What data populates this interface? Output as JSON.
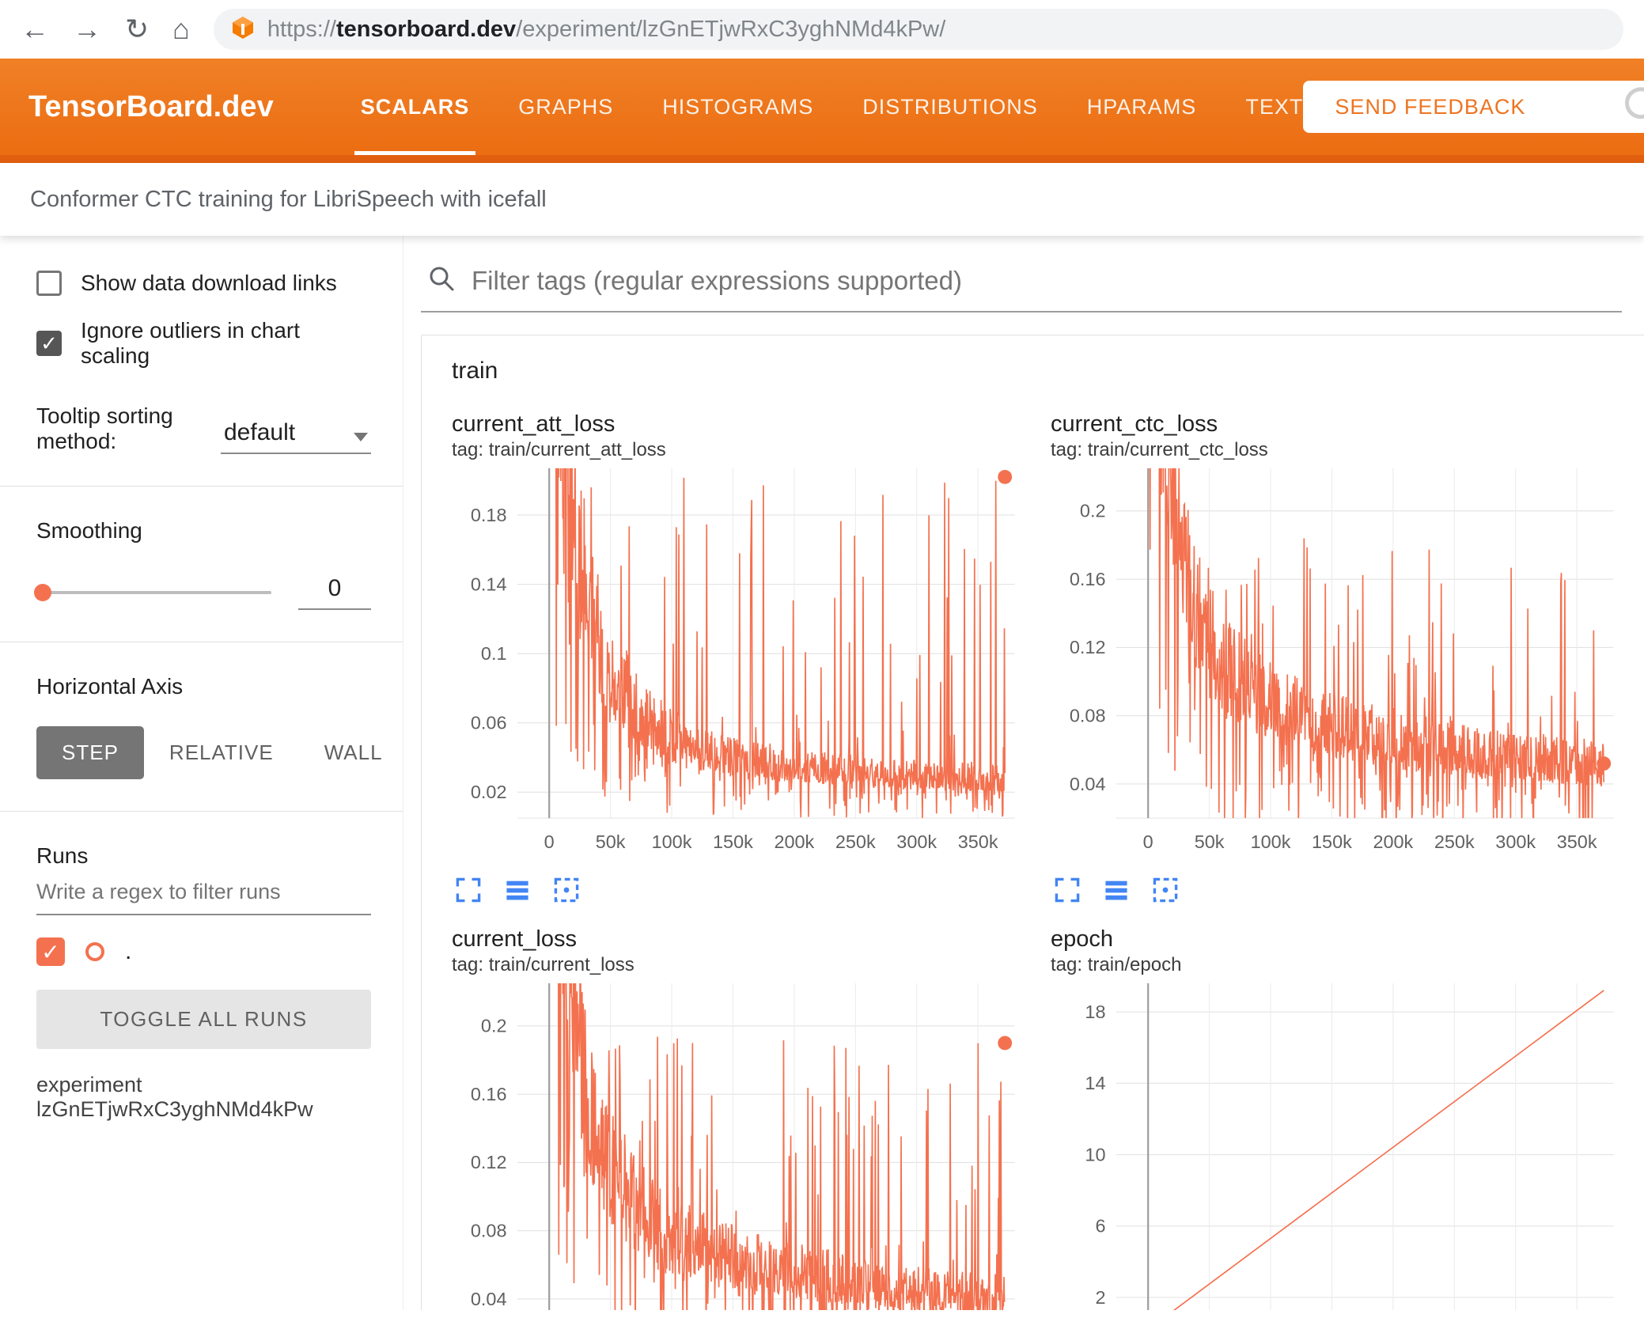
{
  "browser": {
    "url_scheme": "https://",
    "url_host": "tensorboard.dev",
    "url_path": "/experiment/lzGnETjwRxC3yghNMd4kPw/"
  },
  "header": {
    "title": "TensorBoard.dev",
    "tabs": [
      {
        "label": "SCALARS"
      },
      {
        "label": "GRAPHS"
      },
      {
        "label": "HISTOGRAMS"
      },
      {
        "label": "DISTRIBUTIONS"
      },
      {
        "label": "HPARAMS"
      },
      {
        "label": "TEXT"
      }
    ],
    "active_tab": "SCALARS",
    "feedback_button": "SEND FEEDBACK"
  },
  "experiment": {
    "subtitle": "Conformer CTC training for LibriSpeech with icefall",
    "caption": "experiment lzGnETjwRxC3yghNMd4kPw"
  },
  "sidebar": {
    "show_download_label": "Show data download links",
    "show_download_checked": false,
    "ignore_outliers_label": "Ignore outliers in chart scaling",
    "ignore_outliers_checked": true,
    "check_glyph": "✓",
    "tooltip_label": "Tooltip sorting method:",
    "tooltip_value": "default",
    "smoothing_label": "Smoothing",
    "smoothing_value": "0",
    "axis_label": "Horizontal Axis",
    "axis_options": [
      {
        "label": "STEP"
      },
      {
        "label": "RELATIVE"
      },
      {
        "label": "WALL"
      }
    ],
    "axis_selected": "STEP",
    "runs_label": "Runs",
    "runs_filter_placeholder": "Write a regex to filter runs",
    "run_name": ".",
    "toggle_all_label": "TOGGLE ALL RUNS"
  },
  "main": {
    "filter_placeholder": "Filter tags (regular expressions supported)",
    "group_title": "train"
  },
  "colors": {
    "header_orange": "#ee7420",
    "header_orange_dark": "#e25f10",
    "run_color": "#f4714f",
    "icon_blue": "#4285f4"
  },
  "chart_data": [
    {
      "type": "line",
      "title": "current_att_loss",
      "tag": "tag: train/current_att_loss",
      "legend": "none",
      "grid": true,
      "xlim": [
        -26000,
        380000
      ],
      "ylim": [
        0.005,
        0.207
      ],
      "x_start": 0,
      "x_end": 372000,
      "xticks": [
        {
          "v": 0,
          "label": "0"
        },
        {
          "v": 50000,
          "label": "50k"
        },
        {
          "v": 100000,
          "label": "100k"
        },
        {
          "v": 150000,
          "label": "150k"
        },
        {
          "v": 200000,
          "label": "200k"
        },
        {
          "v": 250000,
          "label": "250k"
        },
        {
          "v": 300000,
          "label": "300k"
        },
        {
          "v": 350000,
          "label": "350k"
        }
      ],
      "yticks": [
        {
          "v": 0.02,
          "label": "0.02"
        },
        {
          "v": 0.06,
          "label": "0.06"
        },
        {
          "v": 0.1,
          "label": "0.1"
        },
        {
          "v": 0.14,
          "label": "0.14"
        },
        {
          "v": 0.18,
          "label": "0.18"
        }
      ],
      "baseline": [
        [
          0,
          0.3
        ],
        [
          8000,
          0.26
        ],
        [
          20000,
          0.18
        ],
        [
          40000,
          0.1
        ],
        [
          60000,
          0.075
        ],
        [
          80000,
          0.06
        ],
        [
          100000,
          0.05
        ],
        [
          140000,
          0.04
        ],
        [
          200000,
          0.034
        ],
        [
          260000,
          0.03
        ],
        [
          320000,
          0.028
        ],
        [
          372000,
          0.027
        ]
      ],
      "noise": {
        "seed": 11,
        "jitter": 0.3,
        "spike_prob": 0.12,
        "spike_max": 0.205,
        "dip_prob": 0.18,
        "n": 900
      },
      "end_dot": 0.202
    },
    {
      "type": "line",
      "title": "current_ctc_loss",
      "tag": "tag: train/current_ctc_loss",
      "legend": "none",
      "grid": true,
      "xlim": [
        -26000,
        380000
      ],
      "ylim": [
        0.02,
        0.225
      ],
      "x_start": 0,
      "x_end": 372000,
      "xticks": [
        {
          "v": 0,
          "label": "0"
        },
        {
          "v": 50000,
          "label": "50k"
        },
        {
          "v": 100000,
          "label": "100k"
        },
        {
          "v": 150000,
          "label": "150k"
        },
        {
          "v": 200000,
          "label": "200k"
        },
        {
          "v": 250000,
          "label": "250k"
        },
        {
          "v": 300000,
          "label": "300k"
        },
        {
          "v": 350000,
          "label": "350k"
        }
      ],
      "yticks": [
        {
          "v": 0.04,
          "label": "0.04"
        },
        {
          "v": 0.08,
          "label": "0.08"
        },
        {
          "v": 0.12,
          "label": "0.12"
        },
        {
          "v": 0.16,
          "label": "0.16"
        },
        {
          "v": 0.2,
          "label": "0.2"
        }
      ],
      "baseline": [
        [
          0,
          0.34
        ],
        [
          8000,
          0.3
        ],
        [
          20000,
          0.21
        ],
        [
          40000,
          0.135
        ],
        [
          60000,
          0.11
        ],
        [
          80000,
          0.095
        ],
        [
          100000,
          0.085
        ],
        [
          140000,
          0.074
        ],
        [
          200000,
          0.064
        ],
        [
          260000,
          0.057
        ],
        [
          320000,
          0.053
        ],
        [
          372000,
          0.05
        ]
      ],
      "noise": {
        "seed": 23,
        "jitter": 0.27,
        "spike_prob": 0.1,
        "spike_max": 0.185,
        "dip_prob": 0.16,
        "n": 900
      },
      "end_dot": 0.052
    },
    {
      "type": "line",
      "title": "current_loss",
      "tag": "tag: train/current_loss",
      "legend": "none",
      "grid": true,
      "xlim": [
        -26000,
        380000
      ],
      "ylim": [
        0.02,
        0.225
      ],
      "x_start": 0,
      "x_end": 372000,
      "xticks": [
        {
          "v": 0,
          "label": "0"
        },
        {
          "v": 50000,
          "label": "50k"
        },
        {
          "v": 100000,
          "label": "100k"
        },
        {
          "v": 150000,
          "label": "150k"
        },
        {
          "v": 200000,
          "label": "200k"
        },
        {
          "v": 250000,
          "label": "250k"
        },
        {
          "v": 300000,
          "label": "300k"
        },
        {
          "v": 350000,
          "label": "350k"
        }
      ],
      "yticks": [
        {
          "v": 0.04,
          "label": "0.04"
        },
        {
          "v": 0.08,
          "label": "0.08"
        },
        {
          "v": 0.12,
          "label": "0.12"
        },
        {
          "v": 0.16,
          "label": "0.16"
        },
        {
          "v": 0.2,
          "label": "0.2"
        }
      ],
      "baseline": [
        [
          0,
          0.34
        ],
        [
          8000,
          0.3
        ],
        [
          20000,
          0.2
        ],
        [
          40000,
          0.125
        ],
        [
          60000,
          0.1
        ],
        [
          80000,
          0.085
        ],
        [
          100000,
          0.075
        ],
        [
          140000,
          0.064
        ],
        [
          200000,
          0.054
        ],
        [
          260000,
          0.047
        ],
        [
          320000,
          0.043
        ],
        [
          372000,
          0.04
        ]
      ],
      "noise": {
        "seed": 37,
        "jitter": 0.3,
        "spike_prob": 0.11,
        "spike_max": 0.195,
        "dip_prob": 0.16,
        "n": 900
      },
      "end_dot": 0.19
    },
    {
      "type": "line",
      "title": "epoch",
      "tag": "tag: train/epoch",
      "legend": "none",
      "grid": true,
      "xlim": [
        -26000,
        380000
      ],
      "ylim": [
        0,
        19.6
      ],
      "x_start": 0,
      "x_end": 372000,
      "xticks": [
        {
          "v": 0,
          "label": "0"
        },
        {
          "v": 50000,
          "label": "50k"
        },
        {
          "v": 100000,
          "label": "100k"
        },
        {
          "v": 150000,
          "label": "150k"
        },
        {
          "v": 200000,
          "label": "200k"
        },
        {
          "v": 250000,
          "label": "250k"
        },
        {
          "v": 300000,
          "label": "300k"
        },
        {
          "v": 350000,
          "label": "350k"
        }
      ],
      "yticks": [
        {
          "v": 2,
          "label": "2"
        },
        {
          "v": 6,
          "label": "6"
        },
        {
          "v": 10,
          "label": "10"
        },
        {
          "v": 14,
          "label": "14"
        },
        {
          "v": 18,
          "label": "18"
        }
      ],
      "baseline": [
        [
          0,
          0.2
        ],
        [
          372000,
          19.2
        ]
      ],
      "noise": {
        "seed": 5,
        "jitter": 0,
        "spike_prob": 0,
        "spike_max": 0,
        "dip_prob": 0,
        "n": 10
      },
      "end_dot": null
    }
  ]
}
